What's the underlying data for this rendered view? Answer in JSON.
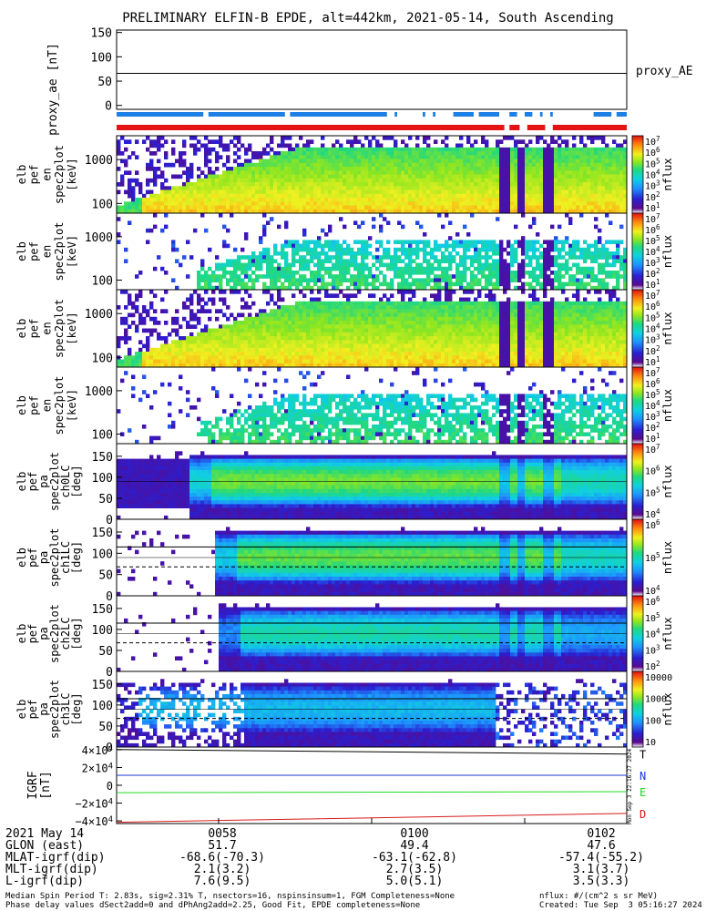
{
  "title": "PRELIMINARY ELFIN-B EPDE, alt=442km, 2021-05-14, South Ascending",
  "colors": {
    "spin_flag": "#1e7fe6",
    "completeness_flag": "#e41414",
    "grf_T": "#000000",
    "grf_N": "#1a3ad8",
    "grf_E": "#22d822",
    "grf_D": "#d81a1a"
  },
  "flags": {
    "blue_segments": [
      [
        0.0,
        0.17
      ],
      [
        0.18,
        0.33
      ],
      [
        0.34,
        0.53
      ],
      [
        0.545,
        0.55
      ],
      [
        0.6,
        0.605
      ],
      [
        0.62,
        0.625
      ],
      [
        0.66,
        0.7
      ],
      [
        0.71,
        0.75
      ],
      [
        0.77,
        0.785
      ],
      [
        0.8,
        0.815
      ],
      [
        0.83,
        0.835
      ],
      [
        0.85,
        0.855
      ],
      [
        0.935,
        0.97
      ],
      [
        0.98,
        1.0
      ]
    ],
    "red_segments": [
      [
        0.0,
        0.76
      ],
      [
        0.77,
        0.79
      ],
      [
        0.805,
        0.84
      ],
      [
        0.855,
        1.0
      ]
    ]
  },
  "chart_data": [
    {
      "type": "line",
      "name": "proxy_ae",
      "ylabel": "proxy_ae [nT]",
      "ylim": [
        -8,
        155
      ],
      "yticks": [
        "150",
        "100",
        "50",
        "0"
      ],
      "legend": "proxy_AE",
      "x": [
        0,
        1
      ],
      "values": [
        66,
        66
      ]
    },
    {
      "type": "heatmap",
      "ylabel": [
        "elb",
        "pef",
        "en",
        "spec2plot",
        "[keV]"
      ],
      "yscale": "log",
      "ylim": [
        60,
        3500
      ],
      "yticks": [
        "1000",
        "100"
      ],
      "colorbar_label": "nflux",
      "colorbar_ticks": [
        "10^7",
        "10^6",
        "10^5",
        "10^4",
        "10^3",
        "10^2",
        "10^1"
      ],
      "variant": "all"
    },
    {
      "type": "heatmap",
      "ylabel": [
        "elb",
        "pef",
        "en",
        "spec2plot",
        "[keV]"
      ],
      "yscale": "log",
      "ylim": [
        60,
        3500
      ],
      "yticks": [
        "1000",
        "100"
      ],
      "colorbar_label": "nflux",
      "colorbar_ticks": [
        "10^7",
        "10^6",
        "10^5",
        "10^4",
        "10^3",
        "10^2",
        "10^1"
      ],
      "variant": "sparse"
    },
    {
      "type": "heatmap",
      "ylabel": [
        "elb",
        "pef",
        "en",
        "spec2plot",
        "[keV]"
      ],
      "yscale": "log",
      "ylim": [
        60,
        3500
      ],
      "yticks": [
        "1000",
        "100"
      ],
      "colorbar_label": "nflux",
      "colorbar_ticks": [
        "10^7",
        "10^6",
        "10^5",
        "10^4",
        "10^3",
        "10^2",
        "10^1"
      ],
      "variant": "all"
    },
    {
      "type": "heatmap",
      "ylabel": [
        "elb",
        "pef",
        "en",
        "spec2plot",
        "[keV]"
      ],
      "yscale": "log",
      "ylim": [
        60,
        3500
      ],
      "yticks": [
        "1000",
        "100"
      ],
      "colorbar_label": "nflux",
      "colorbar_ticks": [
        "10^7",
        "10^6",
        "10^5",
        "10^4",
        "10^3",
        "10^2",
        "10^1"
      ],
      "variant": "sparse"
    },
    {
      "type": "heatmap",
      "ylabel": [
        "elb",
        "pef",
        "pa",
        "spec2plot",
        "ch0LC",
        "[deg]"
      ],
      "ylim": [
        0,
        180
      ],
      "yticks": [
        "150",
        "100",
        "50",
        "0"
      ],
      "colorbar_label": "nflux",
      "colorbar_ticks": [
        "10^7",
        "10^6",
        "10^5",
        "10^4"
      ],
      "variant": "pa0",
      "start": 0.14,
      "end": 1.0
    },
    {
      "type": "heatmap",
      "ylabel": [
        "elb",
        "pef",
        "pa",
        "spec2plot",
        "ch1LC",
        "[deg]"
      ],
      "ylim": [
        0,
        180
      ],
      "yticks": [
        "150",
        "100",
        "50",
        "0"
      ],
      "colorbar_label": "nflux",
      "colorbar_ticks": [
        "10^6",
        "10^5",
        "10^4"
      ],
      "variant": "pa1",
      "start": 0.19,
      "end": 1.0
    },
    {
      "type": "heatmap",
      "ylabel": [
        "elb",
        "pef",
        "pa",
        "spec2plot",
        "ch2LC",
        "[deg]"
      ],
      "ylim": [
        0,
        180
      ],
      "yticks": [
        "150",
        "100",
        "50",
        "0"
      ],
      "colorbar_label": "nflux",
      "colorbar_ticks": [
        "10^6",
        "10^5",
        "10^4",
        "10^3",
        "10^2"
      ],
      "variant": "pa2",
      "start": 0.2,
      "end": 1.0
    },
    {
      "type": "heatmap",
      "ylabel": [
        "elb",
        "pef",
        "pa",
        "spec2plot",
        "ch3LC",
        "[deg]"
      ],
      "ylim": [
        0,
        180
      ],
      "yticks": [
        "150",
        "100",
        "50",
        "0"
      ],
      "colorbar_label": "nflux",
      "colorbar_ticks": [
        "10000",
        "1000",
        "100",
        "10"
      ],
      "variant": "pa3",
      "start": 0.0,
      "end": 1.0
    },
    {
      "type": "line",
      "name": "IGRF",
      "ylabel": "IGRF [nT]",
      "ylim": [
        -43000,
        43000
      ],
      "yticks": [
        "4×10^4",
        "2×10^4",
        "0",
        "−2×10^4",
        "−4×10^4"
      ],
      "x": [
        0,
        1
      ],
      "series": [
        {
          "name": "T",
          "values": [
            40200,
            35100
          ]
        },
        {
          "name": "N",
          "values": [
            11200,
            11300
          ]
        },
        {
          "name": "E",
          "values": [
            -8300,
            -7200
          ]
        },
        {
          "name": "D",
          "values": [
            -41600,
            -31600
          ]
        }
      ]
    }
  ],
  "right_time_label": "Mon Sep  3 22:16:27 2024",
  "footer": {
    "rows": [
      {
        "label": "2021 May 14",
        "v1": "0058",
        "v2": "0100",
        "v3": "0102"
      },
      {
        "label": "GLON (east)",
        "v1": "51.7",
        "v2": "49.4",
        "v3": "47.6"
      },
      {
        "label": "MLAT-igrf(dip)",
        "v1": "-68.6(-70.3)",
        "v2": "-63.1(-62.8)",
        "v3": "-57.4(-55.2)"
      },
      {
        "label": "MLT-igrf(dip)",
        "v1": "2.1(3.2)",
        "v2": "2.7(3.5)",
        "v3": "3.1(3.7)"
      },
      {
        "label": "L-igrf(dip)",
        "v1": "7.6(9.5)",
        "v2": "5.0(5.1)",
        "v3": "3.5(3.3)"
      }
    ],
    "note_line1": "Median Spin Period T: 2.83s, sig=2.31% T, nsectors=16, nspinsinsum=1, FGM Completeness=None",
    "note_line2": "Phase delay values dSect2add=0 and dPhAng2add=2.25, Good Fit, EPDE completeness=None",
    "units": "nflux: #/(cm^2 s sr MeV)",
    "created": "Created: Tue Sep  3 05:16:27 2024"
  }
}
